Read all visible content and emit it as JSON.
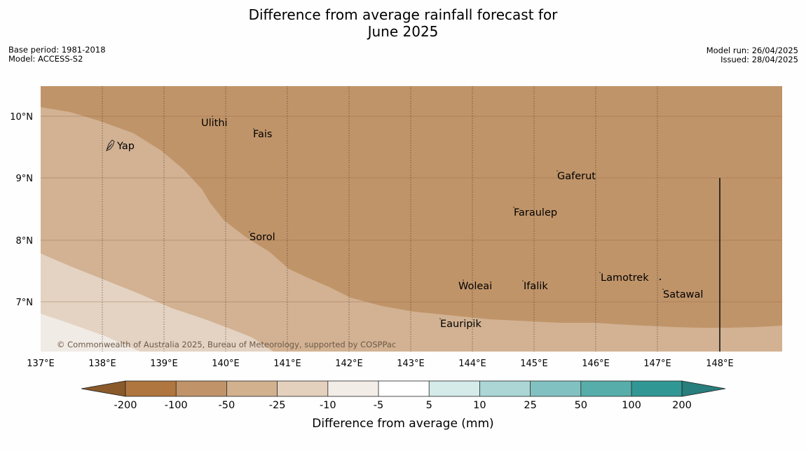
{
  "header": {
    "title_line1": "Difference from average rainfall forecast for",
    "title_line2": "June 2025",
    "base_period": "Base period: 1981-2018",
    "model": "Model: ACCESS-S2",
    "model_run": "Model run: 26/04/2025",
    "issued": "Issued: 28/04/2025"
  },
  "map": {
    "lon_labels": [
      "137°E",
      "138°E",
      "139°E",
      "140°E",
      "141°E",
      "142°E",
      "143°E",
      "144°E",
      "145°E",
      "146°E",
      "147°E",
      "148°E"
    ],
    "lat_labels": [
      "10°N",
      "9°N",
      "8°N",
      "7°N"
    ],
    "copyright": "© Commonwealth of Australia 2025, Bureau of Meteorology, supported by COSPPac",
    "places": [
      "Ulithi",
      "Fais",
      "Yap",
      "Gaferut",
      "Faraulep",
      "Sorol",
      "Lamotrek",
      "Woleai",
      "Ifalik",
      "Satawal",
      "Eauripik"
    ]
  },
  "colorbar": {
    "title": "Difference from average (mm)",
    "tick_labels": [
      "-200",
      "-100",
      "-50",
      "-25",
      "-10",
      "-5",
      "5",
      "10",
      "25",
      "50",
      "100",
      "200"
    ],
    "colors": [
      "#8a5a2b",
      "#b0763f",
      "#c09368",
      "#d2b18f",
      "#e3d0bd",
      "#f3ede7",
      "#ffffff",
      "#d5ebea",
      "#acd6d6",
      "#82c1c1",
      "#57adaa",
      "#319794",
      "#277e7c"
    ]
  }
}
